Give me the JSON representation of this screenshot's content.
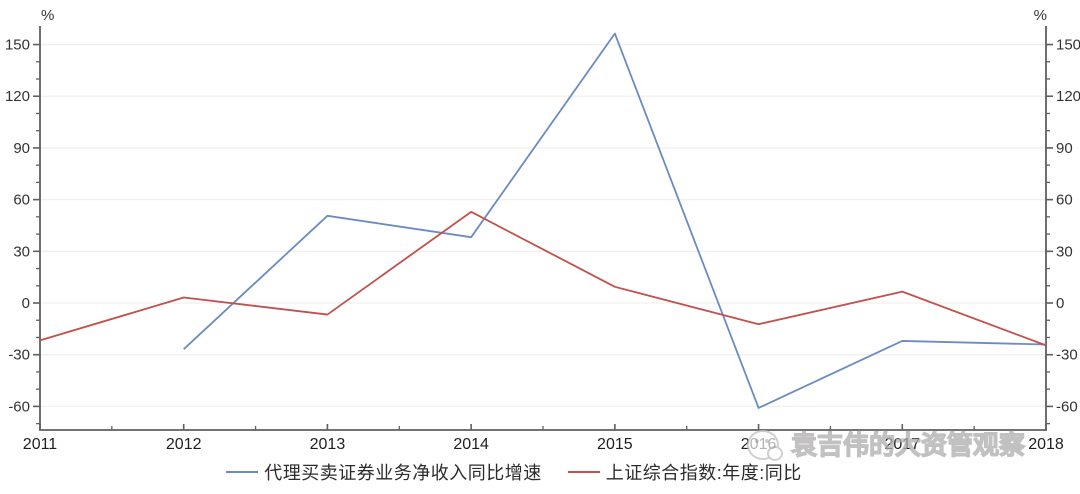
{
  "chart_data": {
    "type": "line",
    "title": "",
    "x": [
      2011,
      2012,
      2013,
      2014,
      2015,
      2016,
      2017,
      2018
    ],
    "x_labels": [
      "2011",
      "2012",
      "2013",
      "2014",
      "2015",
      "2016",
      "2017",
      "2018"
    ],
    "series": [
      {
        "name": "代理买卖证券业务净收入同比增速",
        "color": "#6a8bc3",
        "values": [
          null,
          -26.8,
          50.6,
          38.2,
          156.4,
          -60.9,
          -22.0,
          -24.1
        ]
      },
      {
        "name": "上证综合指数:年度:同比",
        "color": "#c2504b",
        "values": [
          -21.7,
          3.2,
          -6.7,
          52.9,
          9.4,
          -12.3,
          6.6,
          -24.6
        ]
      }
    ],
    "y_axis": {
      "unit": "%",
      "major_ticks": [
        -60,
        -30,
        0,
        30,
        60,
        90,
        120,
        150
      ],
      "minor_step": 10,
      "range": [
        -73.7,
        159.6
      ],
      "sides": "both"
    },
    "x_axis": {
      "minor_ticks": "mid-year"
    },
    "grid": "horizontal-majors",
    "legend_position": "bottom-center"
  },
  "watermark": {
    "text": "袁吉伟的大资管观察",
    "logo": "cartoon-face-badge"
  },
  "colors": {
    "axis": "#5f5f5f",
    "grid": "#f3efee",
    "tick_label": "#333333",
    "background": "#ffffff",
    "series_blue": "#6a8bc3",
    "series_red": "#c2504b"
  }
}
